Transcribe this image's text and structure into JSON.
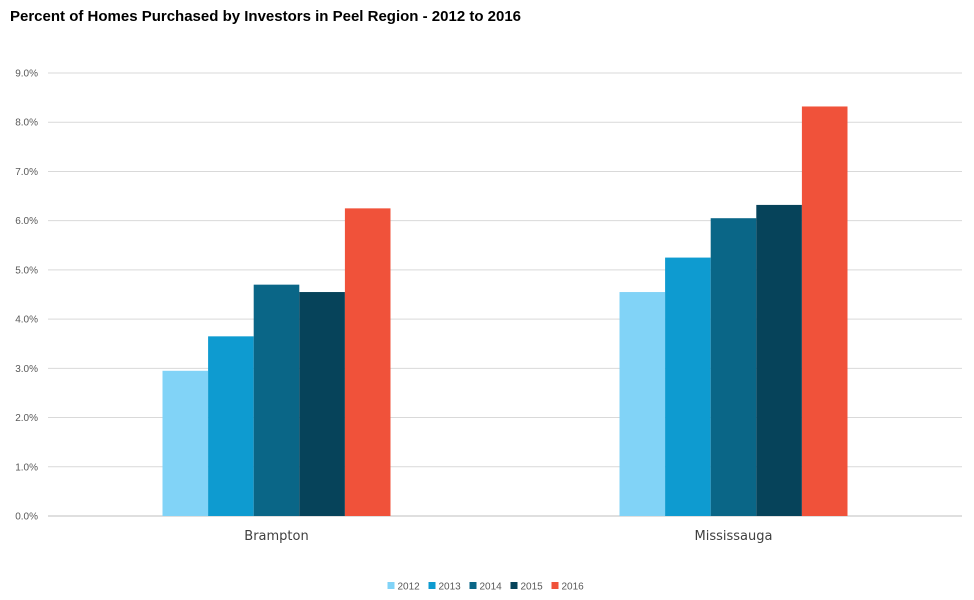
{
  "chart_data": {
    "type": "bar",
    "title": "Percent of Homes Purchased by Investors in Peel Region - 2012 to 2016",
    "xlabel": "",
    "ylabel": "",
    "categories": [
      "Brampton",
      "Mississauga"
    ],
    "series": [
      {
        "name": "2012",
        "values": [
          2.95,
          4.55
        ],
        "color": "#81d3f7"
      },
      {
        "name": "2013",
        "values": [
          3.65,
          5.25
        ],
        "color": "#0e9bd0"
      },
      {
        "name": "2014",
        "values": [
          4.7,
          6.05
        ],
        "color": "#0a6687"
      },
      {
        "name": "2015",
        "values": [
          4.55,
          6.32
        ],
        "color": "#06435a"
      },
      {
        "name": "2016",
        "values": [
          6.25,
          8.32
        ],
        "color": "#f0523a"
      }
    ],
    "ylim": [
      0,
      9
    ],
    "ytick_labels": [
      "0.0%",
      "1.0%",
      "2.0%",
      "3.0%",
      "4.0%",
      "5.0%",
      "6.0%",
      "7.0%",
      "8.0%",
      "9.0%"
    ],
    "grid": true,
    "legend_position": "bottom"
  }
}
